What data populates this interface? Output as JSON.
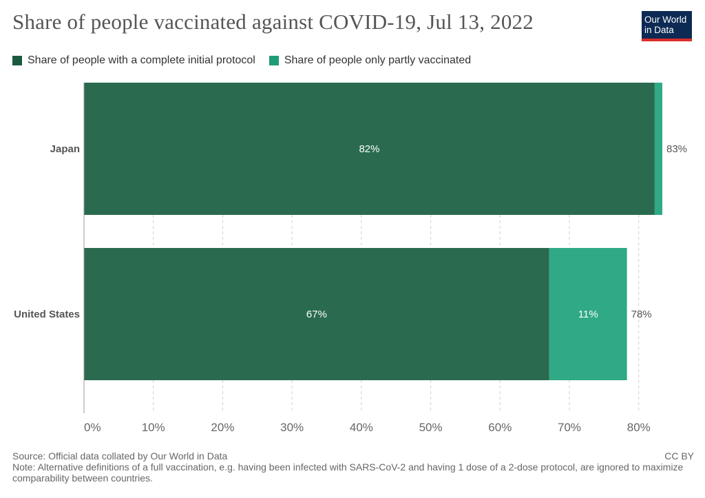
{
  "title": "Share of people vaccinated against COVID-19, Jul 13, 2022",
  "logo": {
    "line1": "Our World",
    "line2": "in Data"
  },
  "colors": {
    "full": "#2a6b4f",
    "partial": "#2fa986",
    "swatch_full": "#1a5a40",
    "swatch_partial": "#1f9c78",
    "grid": "#d0d0d0",
    "axis": "#999999"
  },
  "chart_data": {
    "type": "bar",
    "orientation": "horizontal",
    "stacked": true,
    "categories": [
      "Japan",
      "United States"
    ],
    "series": [
      {
        "name": "Share of people with a complete initial protocol",
        "values": [
          82.3,
          67.1
        ],
        "labels": [
          "82%",
          "67%"
        ]
      },
      {
        "name": "Share of people only partly vaccinated",
        "values": [
          1.1,
          11.2
        ],
        "labels": [
          "",
          "11%"
        ]
      }
    ],
    "totals": [
      "83%",
      "78%"
    ],
    "xlim": [
      0,
      83.4
    ],
    "xticks": [
      0,
      10,
      20,
      30,
      40,
      50,
      60,
      70,
      80
    ],
    "xtick_labels": [
      "0%",
      "10%",
      "20%",
      "30%",
      "40%",
      "50%",
      "60%",
      "70%",
      "80%"
    ],
    "grid": true,
    "legend": "top-left"
  },
  "footer": {
    "source": "Source: Official data collated by Our World in Data",
    "note": "Note: Alternative definitions of a full vaccination, e.g. having been infected with SARS-CoV-2 and having 1 dose of a 2-dose protocol, are ignored to maximize comparability between countries.",
    "license": "CC BY"
  }
}
